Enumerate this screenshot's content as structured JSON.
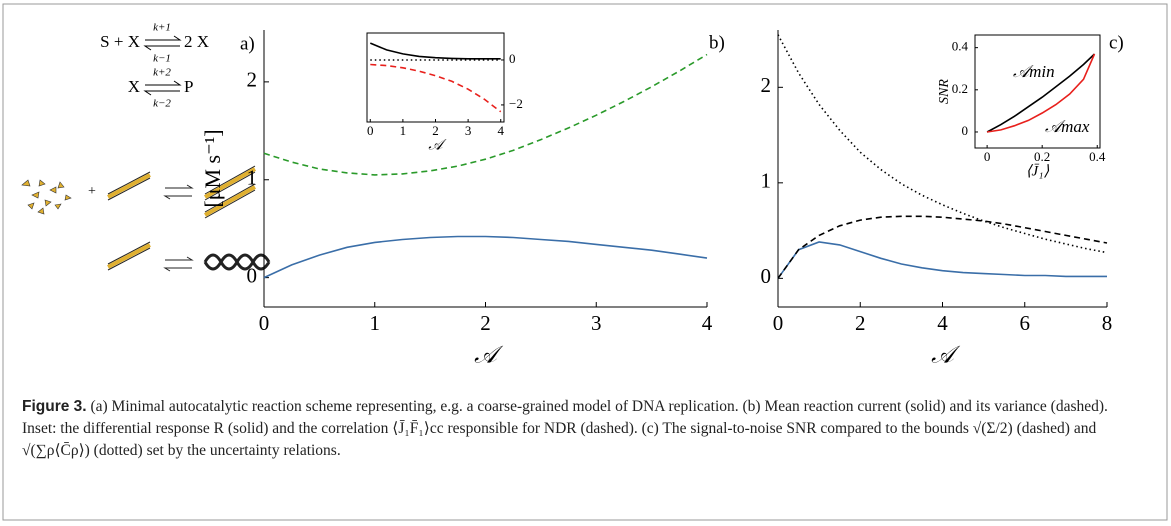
{
  "scheme": {
    "label": "a)",
    "r1_left": "S + X",
    "r1_right": "2 X",
    "k_plus_1": "k+1",
    "k_minus_1": "k−1",
    "r2_left": "X",
    "r2_right": "P",
    "k_plus_2": "k+2",
    "k_minus_2": "k−2",
    "plus": "+"
  },
  "chart_data": [
    {
      "type": "line",
      "panel_label": "b)",
      "ylabel": "[μM s⁻¹]",
      "xlabel": "𝒜",
      "xlim": [
        0,
        4
      ],
      "ylim": [
        -0.3,
        2.53
      ],
      "xticks": [
        0,
        1,
        2,
        3,
        4
      ],
      "yticks": [
        0,
        1,
        2
      ],
      "x": [
        0,
        0.25,
        0.5,
        0.75,
        1,
        1.25,
        1.5,
        1.75,
        2,
        2.25,
        2.5,
        2.75,
        3,
        3.25,
        3.5,
        3.75,
        4
      ],
      "series": [
        {
          "color": "#3a6ea8",
          "style": "solid",
          "values": [
            0,
            0.13,
            0.23,
            0.31,
            0.36,
            0.39,
            0.41,
            0.42,
            0.42,
            0.41,
            0.39,
            0.37,
            0.34,
            0.31,
            0.28,
            0.24,
            0.2
          ]
        },
        {
          "color": "#2a9a2a",
          "style": "dashed",
          "values": [
            1.27,
            1.18,
            1.11,
            1.07,
            1.05,
            1.06,
            1.09,
            1.14,
            1.21,
            1.3,
            1.41,
            1.53,
            1.66,
            1.8,
            1.95,
            2.11,
            2.28
          ]
        }
      ]
    },
    {
      "type": "line",
      "xlabel": "𝒜",
      "xlim": [
        -0.1,
        4.1
      ],
      "ylim": [
        -2.76,
        1.2
      ],
      "xticks": [
        0,
        1,
        2,
        3,
        4
      ],
      "yticks": [
        0,
        {
          "value": -2,
          "label": "−2"
        }
      ],
      "x": [
        0,
        0.5,
        1,
        1.5,
        2,
        2.5,
        3,
        3.5,
        4
      ],
      "series": [
        {
          "color": "#000000",
          "style": "solid",
          "values": [
            0.75,
            0.45,
            0.27,
            0.16,
            0.1,
            0.07,
            0.05,
            0.05,
            0.05
          ]
        },
        {
          "color": "#000000",
          "style": "dotted",
          "values": [
            0,
            0,
            0,
            0,
            0,
            0,
            0,
            0,
            0
          ]
        },
        {
          "color": "#e8201c",
          "style": "dashed",
          "values": [
            -0.2,
            -0.25,
            -0.35,
            -0.5,
            -0.7,
            -0.95,
            -1.3,
            -1.75,
            -2.3
          ]
        }
      ]
    },
    {
      "type": "line",
      "panel_label": "c)",
      "xlabel": "𝒜",
      "xlim": [
        0,
        8
      ],
      "ylim": [
        -0.3,
        2.6
      ],
      "xticks": [
        0,
        2,
        4,
        6,
        8
      ],
      "yticks": [
        0,
        1,
        2
      ],
      "x": [
        0,
        0.5,
        1,
        1.5,
        2,
        2.5,
        3,
        3.5,
        4,
        4.5,
        5,
        5.5,
        6,
        6.5,
        7,
        7.5,
        8
      ],
      "series": [
        {
          "color": "#3a6ea8",
          "style": "solid",
          "values": [
            0,
            0.3,
            0.38,
            0.35,
            0.28,
            0.21,
            0.15,
            0.11,
            0.08,
            0.06,
            0.05,
            0.04,
            0.03,
            0.03,
            0.02,
            0.02,
            0.02
          ]
        },
        {
          "color": "#000000",
          "style": "dashed",
          "values": [
            0,
            0.3,
            0.45,
            0.55,
            0.61,
            0.64,
            0.65,
            0.65,
            0.64,
            0.62,
            0.6,
            0.57,
            0.53,
            0.49,
            0.45,
            0.41,
            0.37
          ]
        },
        {
          "color": "#000000",
          "style": "dotted",
          "values": [
            2.55,
            2.15,
            1.82,
            1.55,
            1.32,
            1.14,
            0.99,
            0.87,
            0.77,
            0.68,
            0.6,
            0.53,
            0.47,
            0.41,
            0.36,
            0.31,
            0.27
          ]
        }
      ]
    },
    {
      "type": "line",
      "ylabel": "SNR",
      "xlabel": "⟨J̄₁⟩",
      "xlim": [
        -0.044,
        0.41
      ],
      "ylim": [
        -0.076,
        0.46
      ],
      "xticks": [
        0,
        0.2,
        0.4
      ],
      "yticks": [
        0,
        0.2,
        0.4
      ],
      "x": [
        0,
        0.05,
        0.1,
        0.15,
        0.2,
        0.25,
        0.3,
        0.35,
        0.39
      ],
      "series": [
        {
          "name": "𝒜min",
          "color": "#000000",
          "style": "solid",
          "values": [
            0,
            0.035,
            0.075,
            0.12,
            0.165,
            0.215,
            0.265,
            0.32,
            0.37
          ]
        },
        {
          "name": "𝒜max",
          "color": "#e8201c",
          "style": "solid",
          "values": [
            0,
            0.01,
            0.03,
            0.055,
            0.09,
            0.13,
            0.18,
            0.25,
            0.37
          ]
        }
      ]
    }
  ],
  "caption": {
    "label": "Figure 3.",
    "text": "(a) Minimal autocatalytic reaction scheme representing, e.g. a coarse-grained model of DNA replication. (b) Mean reaction current (solid) and its variance (dashed). Inset: the differential response R (solid) and the correlation ⟨J̄₁F̄₁⟩cc responsible for NDR (dashed). (c) The signal-to-noise SNR compared to the bounds √(Σ/2) (dashed) and √(∑ρ⟨C̄ρ⟩) (dotted) set by the uncertainty relations."
  }
}
